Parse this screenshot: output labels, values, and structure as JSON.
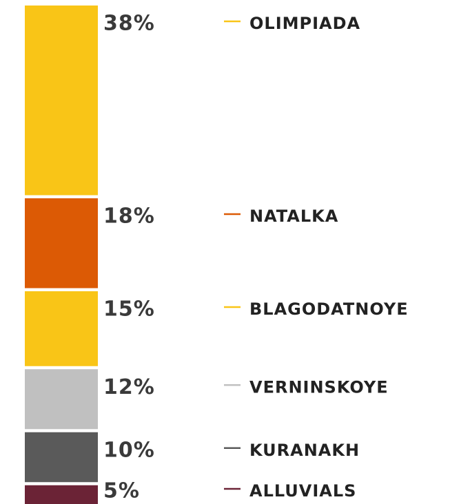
{
  "chart_data": {
    "type": "stacked-bar",
    "categories": [
      "OLIMPIADA",
      "NATALKA",
      "BLAGODATNOYE",
      "VERNINSKOYE",
      "KURANAKH",
      "ALLUVIALS"
    ],
    "values": [
      38,
      18,
      15,
      12,
      10,
      5
    ],
    "value_labels": [
      "38%",
      "18%",
      "15%",
      "12%",
      "10%",
      "5%"
    ],
    "colors": [
      "#f9c517",
      "#dc5a05",
      "#f9c517",
      "#c0c0c0",
      "#5a5a5a",
      "#6b2336"
    ]
  }
}
